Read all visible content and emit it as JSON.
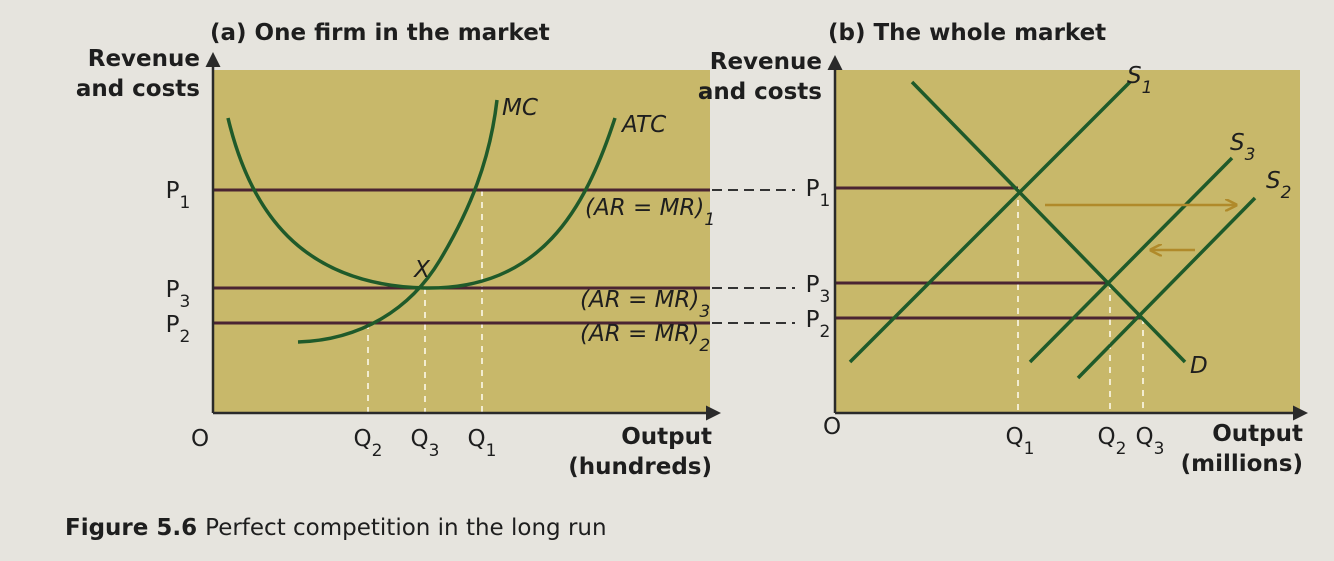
{
  "panel_a": {
    "title": "(a) One firm in the market",
    "y_label": [
      "Revenue",
      "and costs"
    ],
    "x_label": [
      "Output",
      "(hundreds)"
    ],
    "origin": "O",
    "curves": {
      "mc": "MC",
      "atc": "ATC"
    },
    "point": "X",
    "prices": [
      {
        "base": "P",
        "sub": "1"
      },
      {
        "base": "P",
        "sub": "3"
      },
      {
        "base": "P",
        "sub": "2"
      }
    ],
    "lines": [
      {
        "base": "(AR = MR)",
        "sub": "1"
      },
      {
        "base": "(AR = MR)",
        "sub": "3"
      },
      {
        "base": "(AR = MR)",
        "sub": "2"
      }
    ],
    "quantities": [
      {
        "base": "Q",
        "sub": "2"
      },
      {
        "base": "Q",
        "sub": "3"
      },
      {
        "base": "Q",
        "sub": "1"
      }
    ]
  },
  "panel_b": {
    "title": "(b) The whole market",
    "y_label": [
      "Revenue",
      "and costs"
    ],
    "x_label": [
      "Output",
      "(millions)"
    ],
    "origin": "O",
    "prices": [
      {
        "base": "P",
        "sub": "1"
      },
      {
        "base": "P",
        "sub": "3"
      },
      {
        "base": "P",
        "sub": "2"
      }
    ],
    "supply": [
      {
        "base": "S",
        "sub": "1"
      },
      {
        "base": "S",
        "sub": "3"
      },
      {
        "base": "S",
        "sub": "2"
      }
    ],
    "demand": "D",
    "quantities": [
      {
        "base": "Q",
        "sub": "1"
      },
      {
        "base": "Q",
        "sub": "2"
      },
      {
        "base": "Q",
        "sub": "3"
      }
    ]
  },
  "caption": {
    "number": "Figure 5.6",
    "text": "Perfect competition in the long run"
  }
}
